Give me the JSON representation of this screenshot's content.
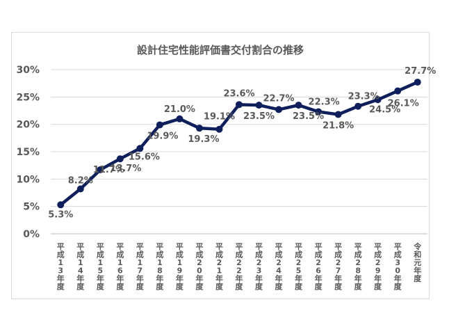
{
  "chart_data": {
    "type": "line",
    "title": "設計住宅性能評価書交付割合の推移",
    "xlabel": "",
    "ylabel": "",
    "categories": [
      "平成13年度",
      "平成14年度",
      "平成15年度",
      "平成16年度",
      "平成17年度",
      "平成18年度",
      "平成19年度",
      "平成20年度",
      "平成21年度",
      "平成22年度",
      "平成23年度",
      "平成24年度",
      "平成25年度",
      "平成26年度",
      "平成27年度",
      "平成28年度",
      "平成29年度",
      "平成30年度",
      "令和元年度"
    ],
    "series": [
      {
        "values": [
          5.3,
          8.2,
          11.7,
          13.7,
          15.6,
          19.9,
          21.0,
          19.3,
          19.1,
          23.6,
          23.5,
          22.7,
          23.5,
          22.3,
          21.8,
          23.3,
          24.5,
          26.1,
          27.7
        ],
        "labels": [
          "5.3%",
          "8.2%",
          "11.7%",
          "13.7%",
          "15.6%",
          "19.9%",
          "21.0%",
          "19.3%",
          "19.1%",
          "23.6%",
          "23.5%",
          "22.7%",
          "23.5%",
          "22.3%",
          "21.8%",
          "23.3%",
          "24.5%",
          "26.1%",
          "27.7%"
        ],
        "color": "#0f1f5c"
      }
    ],
    "ylim": [
      0,
      30
    ],
    "yticks": [
      "0%",
      "5%",
      "10%",
      "15%",
      "20%",
      "25%",
      "30%"
    ],
    "grid": true,
    "legend": "none"
  }
}
